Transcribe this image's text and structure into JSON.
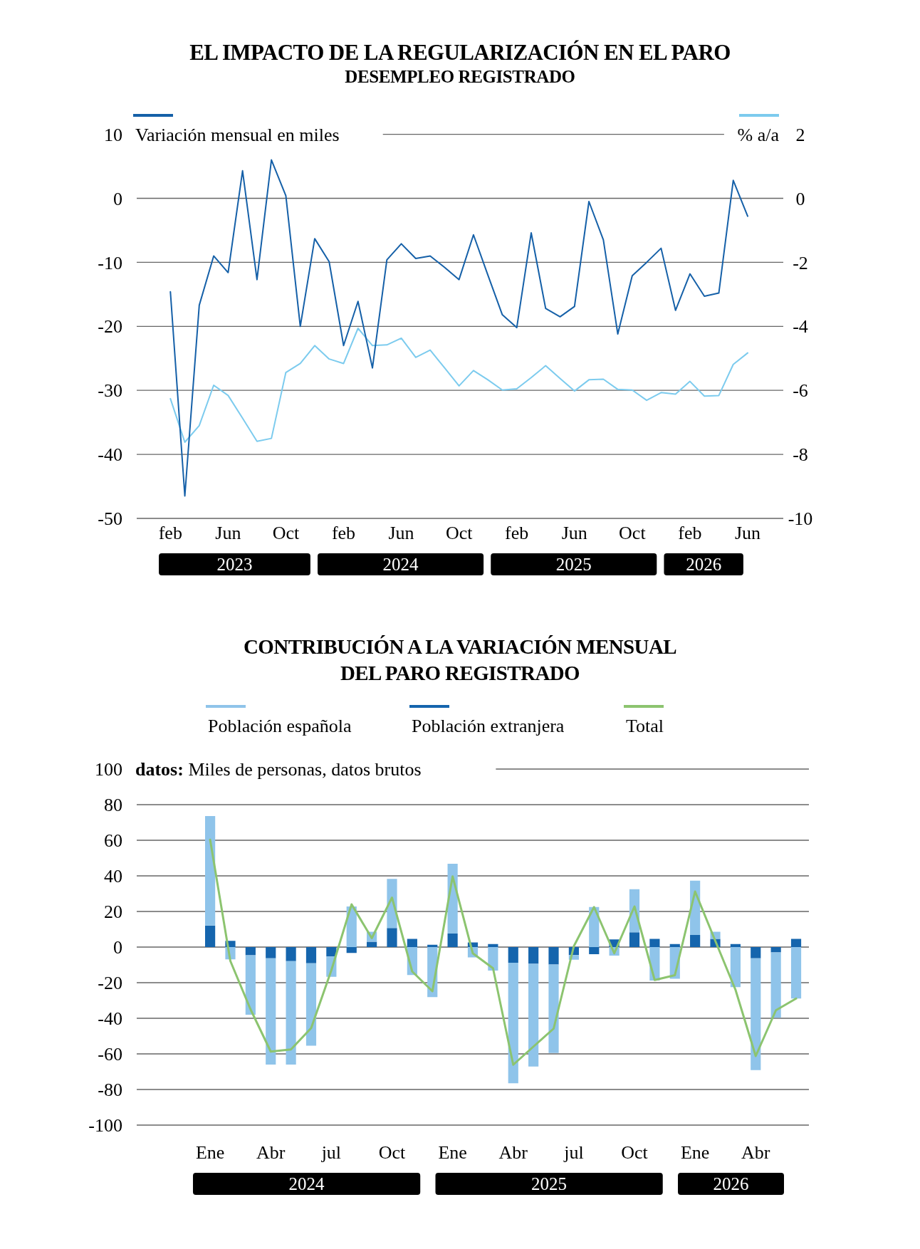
{
  "chart_data": [
    {
      "type": "line",
      "title": "EL IMPACTO DE LA REGULARIZACIÓN EN EL PARO",
      "subtitle": "DESEMPLEO REGISTRADO",
      "x": [
        "2023-02",
        "2023-03",
        "2023-04",
        "2023-05",
        "2023-06",
        "2023-07",
        "2023-08",
        "2023-09",
        "2023-10",
        "2023-11",
        "2023-12",
        "2024-01",
        "2024-02",
        "2024-03",
        "2024-04",
        "2024-05",
        "2024-06",
        "2024-07",
        "2024-08",
        "2024-09",
        "2024-10",
        "2024-11",
        "2024-12",
        "2025-01",
        "2025-02",
        "2025-03",
        "2025-04",
        "2025-05",
        "2025-06",
        "2025-07",
        "2025-08",
        "2025-09",
        "2025-10",
        "2025-11",
        "2025-12",
        "2026-01",
        "2026-02",
        "2026-03",
        "2026-04",
        "2026-05",
        "2026-06"
      ],
      "xlim": [
        "2022-11-21",
        "2026-08-15"
      ],
      "xticks": [
        {
          "value": "2023-02",
          "label": "feb"
        },
        {
          "value": "2023-06",
          "label": "Jun"
        },
        {
          "value": "2023-10",
          "label": "Oct"
        },
        {
          "value": "2024-02",
          "label": "feb"
        },
        {
          "value": "2024-06",
          "label": "Jun"
        },
        {
          "value": "2024-10",
          "label": "Oct"
        },
        {
          "value": "2025-02",
          "label": "feb"
        },
        {
          "value": "2025-06",
          "label": "Jun"
        },
        {
          "value": "2025-10",
          "label": "Oct"
        },
        {
          "value": "2026-02",
          "label": "feb"
        },
        {
          "value": "2026-06",
          "label": "Jun"
        }
      ],
      "ylim": [
        -50,
        10
      ],
      "yticks": [
        -50,
        -40,
        -30,
        -20,
        -10,
        0,
        10
      ],
      "y2lim": [
        -10,
        2
      ],
      "y2ticks": [
        -10,
        -8,
        -6,
        -4,
        -2,
        0,
        2
      ],
      "series": [
        {
          "name": "Variación mensual en miles",
          "color": "#1560a8",
          "values": [
            -14.6,
            -46.5,
            -16.7,
            -9.0,
            -11.6,
            4.3,
            -12.7,
            6.0,
            0.4,
            -20.0,
            -6.3,
            -9.9,
            -23.0,
            -16.1,
            -26.5,
            -9.6,
            -7.1,
            -9.4,
            -9.0,
            -10.8,
            -12.7,
            -5.7,
            -12.0,
            -18.2,
            -20.2,
            -5.4,
            -17.2,
            -18.5,
            -16.9,
            -0.5,
            -6.5,
            -21.2,
            -12.1,
            -10.0,
            -7.8,
            -17.5,
            -11.8,
            -15.3,
            -14.8,
            2.8,
            -2.8
          ]
        },
        {
          "name": "% a/a",
          "color": "#7ccbee",
          "axis": "y2",
          "values": [
            -6.26,
            -7.62,
            -7.1,
            -5.84,
            -6.16,
            -6.87,
            -7.59,
            -7.5,
            -5.44,
            -5.16,
            -4.6,
            -5.02,
            -5.16,
            -4.06,
            -4.6,
            -4.58,
            -4.37,
            -4.97,
            -4.74,
            -5.3,
            -5.86,
            -5.38,
            -5.67,
            -5.99,
            -5.95,
            -5.6,
            -5.23,
            -5.63,
            -6.02,
            -5.67,
            -5.65,
            -5.97,
            -5.99,
            -6.31,
            -6.07,
            -6.12,
            -5.72,
            -6.18,
            -6.16,
            -5.19,
            -4.83
          ]
        }
      ],
      "grid": "y",
      "legend": "top",
      "annotations": [
        "2023",
        "2024",
        "2025",
        "2026"
      ]
    },
    {
      "type": "bar",
      "title": "CONTRIBUCIÓN A LA VARIACIÓN MENSUAL DEL PARO REGISTRADO",
      "ylabel": "datos: Miles de personas, datos brutos",
      "x": [
        "2024-01",
        "2024-02",
        "2024-03",
        "2024-04",
        "2024-05",
        "2024-06",
        "2024-07",
        "2024-08",
        "2024-09",
        "2024-10",
        "2024-11",
        "2024-12",
        "2025-01",
        "2025-02",
        "2025-03",
        "2025-04",
        "2025-05",
        "2025-06",
        "2025-07",
        "2025-08",
        "2025-09",
        "2025-10",
        "2025-11",
        "2025-12",
        "2026-01",
        "2026-02",
        "2026-03",
        "2026-04",
        "2026-05",
        "2026-06"
      ],
      "xlim": [
        "2023-09-12",
        "2026-06-20"
      ],
      "xticks": [
        {
          "value": "2024-01",
          "label": "Ene"
        },
        {
          "value": "2024-04",
          "label": "Abr"
        },
        {
          "value": "2024-07",
          "label": "jul"
        },
        {
          "value": "2024-10",
          "label": "Oct"
        },
        {
          "value": "2025-01",
          "label": "Ene"
        },
        {
          "value": "2025-04",
          "label": "Abr"
        },
        {
          "value": "2025-07",
          "label": "jul"
        },
        {
          "value": "2025-10",
          "label": "Oct"
        },
        {
          "value": "2026-01",
          "label": "Ene"
        },
        {
          "value": "2026-04",
          "label": "Abr"
        }
      ],
      "ylim": [
        -100,
        100
      ],
      "yticks": [
        -100,
        -80,
        -60,
        -40,
        -20,
        0,
        20,
        40,
        60,
        80,
        100
      ],
      "stacked": true,
      "series": [
        {
          "name": "Población extranjera",
          "color": "#1565ad",
          "values": [
            12.1,
            3.5,
            -4.6,
            -6.3,
            -7.9,
            -9.1,
            -5.3,
            -3.3,
            3.0,
            10.7,
            4.6,
            1.3,
            7.6,
            2.6,
            1.7,
            -8.8,
            -9.4,
            -9.8,
            -4.5,
            -4.0,
            4.3,
            8.3,
            4.6,
            1.7,
            6.8,
            4.6,
            1.7,
            -6.3,
            -3.0,
            4.6
          ]
        },
        {
          "name": "Población española",
          "color": "#8fc4ea",
          "values": [
            61.5,
            -6.9,
            -33.4,
            -59.7,
            -58.1,
            -46.3,
            -11.4,
            22.8,
            5.6,
            27.6,
            -15.7,
            -28.1,
            39.2,
            -5.8,
            -13.2,
            -67.7,
            -57.7,
            -49.7,
            -2.6,
            22.5,
            -4.8,
            24.2,
            -18.8,
            -17.8,
            30.5,
            4.0,
            -22.5,
            -62.8,
            -36.7,
            -28.9
          ]
        },
        {
          "name": "Total",
          "type": "line",
          "color": "#8cc46f",
          "values": [
            60.3,
            -7.8,
            -35,
            -58.7,
            -57.5,
            -45.5,
            -13,
            24,
            5,
            27.8,
            -13.7,
            -24.8,
            39.7,
            -3.5,
            -11.9,
            -66.1,
            -55.9,
            -45.8,
            0.5,
            22.5,
            -3.5,
            22.8,
            -18.5,
            -15.8,
            31.2,
            3.5,
            -24,
            -61.2,
            -35.5,
            -28.9
          ]
        }
      ],
      "grid": "y",
      "legend": "top",
      "annotations": [
        "2024",
        "2025",
        "2026"
      ]
    }
  ]
}
